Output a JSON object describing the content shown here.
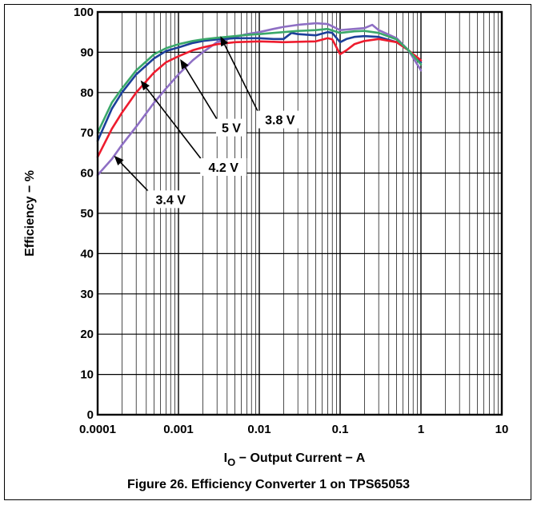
{
  "caption": "Figure 26. Efficiency Converter 1 on TPS65053",
  "chart_data": {
    "type": "line",
    "title": "",
    "xlabel_main": "I",
    "xlabel_sub": "O",
    "xlabel_rest": " − Output Current − A",
    "ylabel": "Efficiency − %",
    "xscale": "log",
    "xlim": [
      0.0001,
      10
    ],
    "ylim": [
      0,
      100
    ],
    "grid": true,
    "x_ticks": [
      {
        "value": 0.0001,
        "label": "0.0001"
      },
      {
        "value": 0.001,
        "label": "0.001"
      },
      {
        "value": 0.01,
        "label": "0.01"
      },
      {
        "value": 0.1,
        "label": "0.1"
      },
      {
        "value": 1,
        "label": "1"
      },
      {
        "value": 10,
        "label": "10"
      }
    ],
    "y_ticks": [
      {
        "value": 0,
        "label": "0"
      },
      {
        "value": 10,
        "label": "10"
      },
      {
        "value": 20,
        "label": "20"
      },
      {
        "value": 30,
        "label": "30"
      },
      {
        "value": 40,
        "label": "40"
      },
      {
        "value": 50,
        "label": "50"
      },
      {
        "value": 60,
        "label": "60"
      },
      {
        "value": 70,
        "label": "70"
      },
      {
        "value": 80,
        "label": "80"
      },
      {
        "value": 90,
        "label": "90"
      },
      {
        "value": 100,
        "label": "100"
      }
    ],
    "series": [
      {
        "name": "3.4 V",
        "color": "#8e6fc4",
        "x": [
          0.0001,
          0.00015,
          0.0002,
          0.0003,
          0.0005,
          0.0007,
          0.001,
          0.0015,
          0.002,
          0.003,
          0.005,
          0.007,
          0.01,
          0.015,
          0.02,
          0.03,
          0.05,
          0.07,
          0.1,
          0.15,
          0.2,
          0.25,
          0.3,
          0.5,
          0.7,
          1
        ],
        "y": [
          59.5,
          63.5,
          67,
          71.5,
          77.5,
          81,
          84.5,
          88,
          90,
          92.5,
          93.8,
          94.5,
          95,
          95.8,
          96.3,
          96.8,
          97.2,
          97,
          95.5,
          95.8,
          96,
          96.8,
          95.5,
          93.5,
          90.5,
          85.5
        ]
      },
      {
        "name": "3.8 V",
        "color": "#1c3f9a",
        "x": [
          0.0001,
          0.00015,
          0.0002,
          0.0003,
          0.0005,
          0.0007,
          0.001,
          0.0015,
          0.002,
          0.003,
          0.005,
          0.007,
          0.01,
          0.015,
          0.02,
          0.025,
          0.03,
          0.05,
          0.07,
          0.08,
          0.1,
          0.12,
          0.15,
          0.2,
          0.3,
          0.5,
          0.7,
          1
        ],
        "y": [
          68,
          76,
          80,
          84.5,
          88.5,
          90.3,
          91.2,
          92.3,
          92.8,
          93.2,
          93.5,
          93.5,
          93.5,
          93.3,
          93.3,
          94.8,
          94.5,
          94.2,
          95,
          94.8,
          92.5,
          93.3,
          93.8,
          94,
          93.8,
          92.5,
          90.5,
          87.5
        ]
      },
      {
        "name": "4.2 V",
        "color": "#ee1c2e",
        "x": [
          0.0001,
          0.00015,
          0.0002,
          0.0003,
          0.0005,
          0.0007,
          0.001,
          0.0015,
          0.002,
          0.003,
          0.005,
          0.007,
          0.01,
          0.015,
          0.02,
          0.03,
          0.05,
          0.07,
          0.08,
          0.1,
          0.12,
          0.15,
          0.2,
          0.3,
          0.5,
          0.7,
          1
        ],
        "y": [
          64,
          71,
          75,
          80,
          85,
          87.5,
          89,
          90.5,
          91.2,
          92,
          92.5,
          92.6,
          92.7,
          92.6,
          92.5,
          92.6,
          92.7,
          93.5,
          93.2,
          89.5,
          90.5,
          92,
          92.8,
          93.3,
          92.5,
          90.5,
          88
        ]
      },
      {
        "name": "5 V",
        "color": "#3aa86a",
        "x": [
          0.0001,
          0.00015,
          0.0002,
          0.0003,
          0.0005,
          0.0007,
          0.001,
          0.0015,
          0.002,
          0.003,
          0.005,
          0.007,
          0.01,
          0.015,
          0.02,
          0.03,
          0.05,
          0.07,
          0.1,
          0.15,
          0.2,
          0.3,
          0.5,
          0.7,
          1
        ],
        "y": [
          70,
          77.5,
          81,
          85.5,
          89.5,
          91,
          92,
          92.8,
          93.2,
          93.6,
          94,
          94.3,
          94.5,
          94.8,
          95,
          95.3,
          95.5,
          95.8,
          94.8,
          95.2,
          95.3,
          94.8,
          93.2,
          90.5,
          87
        ]
      }
    ],
    "annotations": [
      {
        "text": "3.8 V",
        "label_x": 0.018,
        "label_y": 73.3,
        "arrow_to_x": 0.0033,
        "arrow_to_y": 94
      },
      {
        "text": "5 V",
        "label_x": 0.0045,
        "label_y": 71.3,
        "arrow_to_x": 0.00105,
        "arrow_to_y": 88.3
      },
      {
        "text": "4.2 V",
        "label_x": 0.0036,
        "label_y": 61.5,
        "arrow_to_x": 0.00034,
        "arrow_to_y": 83
      },
      {
        "text": "3.4 V",
        "label_x": 0.0008,
        "label_y": 53.5,
        "arrow_to_x": 0.00016,
        "arrow_to_y": 64.3
      }
    ]
  }
}
